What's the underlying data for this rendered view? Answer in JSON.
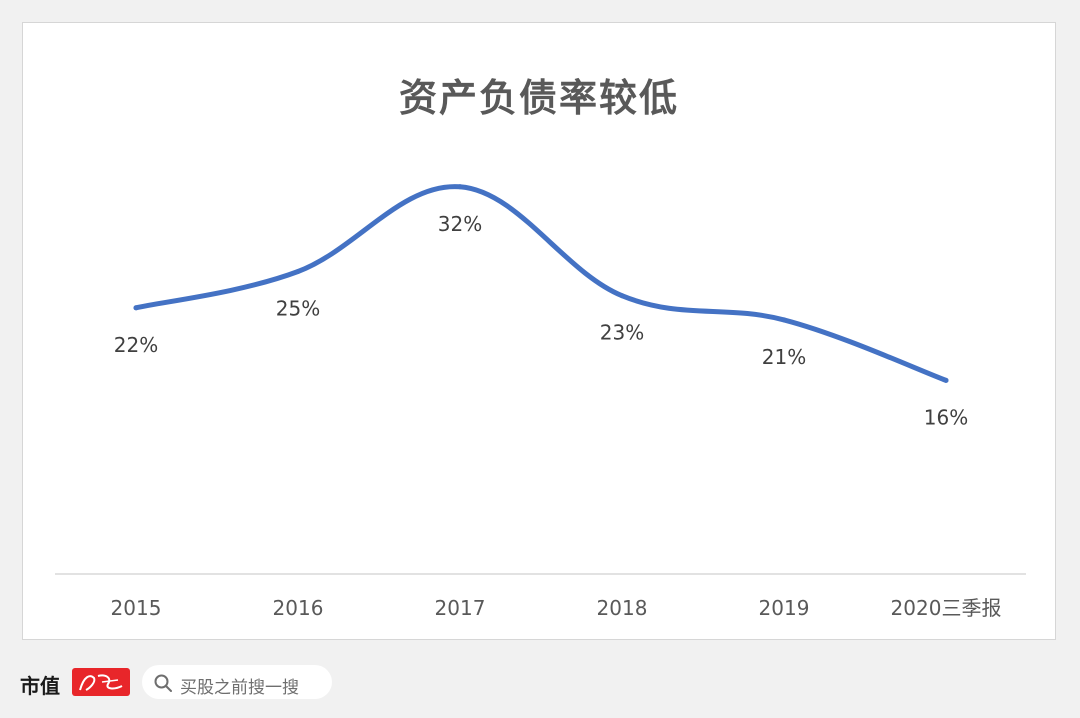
{
  "chart_data": {
    "type": "line",
    "title": "资产负债率较低",
    "categories": [
      "2015",
      "2016",
      "2017",
      "2018",
      "2019",
      "2020三季报"
    ],
    "series": [
      {
        "values": [
          22,
          25,
          32,
          23,
          21,
          16
        ]
      }
    ],
    "data_labels": [
      "22%",
      "25%",
      "32%",
      "23%",
      "21%",
      "16%"
    ],
    "unit": "%",
    "line_color": "#4472c4",
    "smooth": true,
    "grid": false,
    "legend": "none"
  },
  "footer": {
    "brand_text": "市值",
    "brand_badge_text": "风云",
    "search_placeholder": "买股之前搜一搜"
  }
}
